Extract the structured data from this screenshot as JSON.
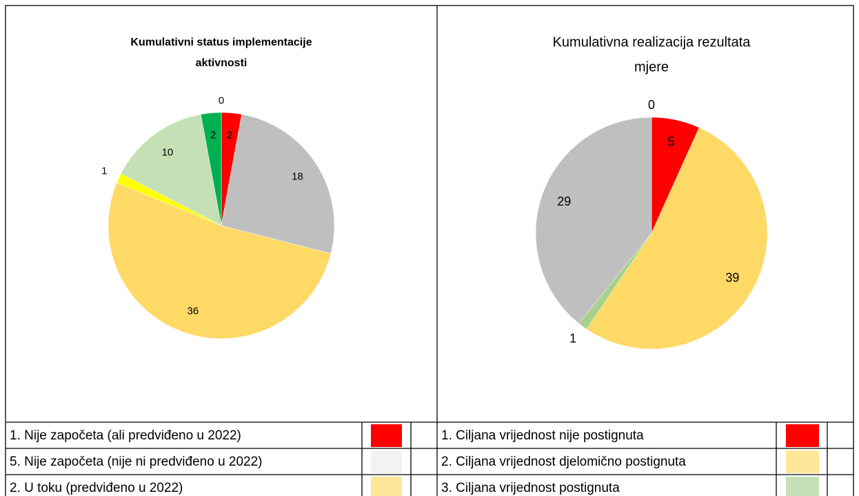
{
  "charts": [
    {
      "title": [
        "Kumulativni status implementacije",
        "aktivnosti"
      ],
      "slices": [
        {
          "value": 2,
          "color": "#ff0000"
        },
        {
          "value": 18,
          "color": "#bfbfbf"
        },
        {
          "value": 36,
          "color": "#ffd966"
        },
        {
          "value": 1,
          "color": "#ffff00"
        },
        {
          "value": 10,
          "color": "#c5e0b4"
        },
        {
          "value": 2,
          "color": "#00b050"
        },
        {
          "value": 0,
          "color": "#70ad47"
        }
      ],
      "legend": [
        {
          "label": "1. Nije započeta (ali predviđeno u 2022)",
          "color": "#ff0000"
        },
        {
          "label": "5. Nije započeta (nije ni predviđeno u 2022)",
          "color": "#f2f2f2"
        },
        {
          "label": "2. U toku (predviđeno u 2022)",
          "color": "#ffe699"
        }
      ]
    },
    {
      "title": [
        "Kumulativna realizacija rezultata",
        "mjere"
      ],
      "slices": [
        {
          "value": 5,
          "color": "#ff0000"
        },
        {
          "value": 39,
          "color": "#ffd966"
        },
        {
          "value": 1,
          "color": "#a9d18e"
        },
        {
          "value": 29,
          "color": "#bfbfbf"
        },
        {
          "value": 0,
          "color": "#70ad47"
        }
      ],
      "legend": [
        {
          "label": "1. Ciljana vrijednost nije postignuta",
          "color": "#ff0000"
        },
        {
          "label": "2. Ciljana vrijednost djelomično postignuta",
          "color": "#ffe699"
        },
        {
          "label": "3. Ciljana vrijednost postignuta",
          "color": "#c5e0b4"
        }
      ]
    }
  ]
}
